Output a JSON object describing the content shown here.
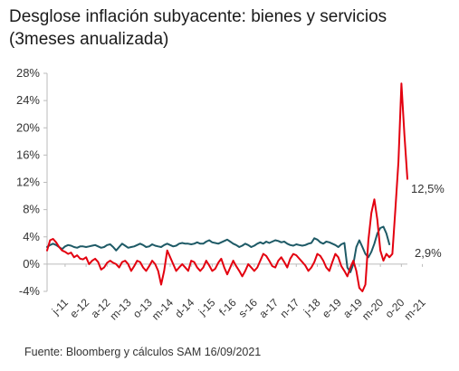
{
  "title_line1": "Desglose inflación subyacente: bienes y servicios",
  "title_line2": "(3meses anualizada)",
  "source": "Fuente: Bloomberg y cálculos SAM 16/09/2021",
  "colors": {
    "bienes": "#e3000f",
    "servicios": "#1e5a66",
    "axis": "#bbbbbb"
  },
  "chart_data": {
    "type": "line",
    "title": "Desglose inflación subyacente: bienes y servicios (3meses anualizada)",
    "xlabel": "",
    "ylabel": "",
    "ylim": [
      -4,
      28
    ],
    "yticks": [
      -4,
      0,
      4,
      8,
      12,
      16,
      20,
      24,
      28
    ],
    "ytick_labels": [
      "-4%",
      "0%",
      "4%",
      "8%",
      "12%",
      "16%",
      "20%",
      "24%",
      "28%"
    ],
    "xtick_labels": [
      "j-11",
      "e-12",
      "a-12",
      "m-13",
      "o-13",
      "m-14",
      "d-14",
      "j-15",
      "f-16",
      "s-16",
      "a-17",
      "n-17",
      "j-18",
      "e-19",
      "a-19",
      "m-20",
      "o-20",
      "m-21"
    ],
    "xtick_months": [
      6,
      13,
      20,
      27,
      34,
      41,
      48,
      55,
      62,
      69,
      76,
      83,
      90,
      97,
      104,
      111,
      118,
      125
    ],
    "x_start": "2011-06",
    "x_end": "2021-08",
    "grid": false,
    "legend": "none",
    "series": [
      {
        "end_label": "12,5%",
        "color": "#e3000f",
        "values": [
          2.0,
          3.5,
          3.7,
          3.2,
          2.5,
          2.0,
          1.8,
          1.5,
          1.7,
          1.0,
          1.3,
          0.8,
          0.7,
          1.0,
          0.0,
          0.5,
          0.8,
          0.3,
          -0.8,
          -0.5,
          0.2,
          0.5,
          0.2,
          0.0,
          -0.5,
          0.3,
          0.5,
          0.0,
          -1.0,
          -0.3,
          0.5,
          0.3,
          -0.5,
          -1.0,
          -0.3,
          0.5,
          0.0,
          -1.0,
          -3.0,
          -1.0,
          2.0,
          1.0,
          0.0,
          -1.0,
          -0.5,
          0.0,
          -0.5,
          -1.0,
          0.5,
          0.3,
          -0.5,
          -1.0,
          -0.5,
          0.5,
          -0.2,
          -1.0,
          -0.7,
          0.2,
          0.8,
          -0.5,
          -1.5,
          -0.5,
          0.5,
          -0.3,
          -1.0,
          -1.8,
          -1.0,
          0.0,
          -0.5,
          -1.0,
          -0.5,
          0.5,
          1.5,
          1.2,
          0.5,
          -0.3,
          -0.5,
          0.5,
          1.0,
          0.3,
          -0.5,
          0.8,
          1.5,
          1.3,
          0.8,
          0.3,
          -0.2,
          -1.0,
          -0.5,
          0.3,
          1.5,
          1.2,
          0.5,
          -0.5,
          -1.0,
          0.3,
          1.5,
          1.0,
          -0.3,
          -1.0,
          -1.8,
          -0.5,
          0.5,
          -1.0,
          -3.5,
          -4.0,
          -3.0,
          3.5,
          7.5,
          9.5,
          6.5,
          2.0,
          0.5,
          1.5,
          1.0,
          1.5,
          8.0,
          15.0,
          26.5,
          19.0,
          12.5
        ]
      },
      {
        "end_label": "2,9%",
        "color": "#1e5a66",
        "values": [
          2.5,
          2.8,
          3.0,
          2.8,
          2.5,
          2.2,
          2.6,
          2.8,
          2.7,
          2.5,
          2.4,
          2.6,
          2.6,
          2.5,
          2.6,
          2.7,
          2.8,
          2.6,
          2.4,
          2.5,
          2.8,
          2.9,
          2.5,
          2.0,
          2.5,
          3.0,
          2.7,
          2.4,
          2.5,
          2.6,
          2.8,
          3.0,
          2.8,
          2.5,
          2.6,
          2.9,
          2.7,
          2.6,
          2.5,
          2.8,
          3.0,
          2.8,
          2.6,
          2.7,
          3.0,
          3.1,
          3.0,
          3.0,
          2.9,
          3.0,
          3.2,
          3.0,
          3.0,
          3.3,
          3.5,
          3.2,
          3.1,
          3.0,
          3.2,
          3.4,
          3.6,
          3.3,
          3.0,
          2.8,
          2.5,
          2.7,
          3.0,
          2.8,
          2.5,
          2.7,
          3.0,
          3.2,
          3.0,
          3.3,
          3.1,
          3.3,
          3.5,
          3.4,
          3.2,
          3.3,
          3.0,
          2.8,
          2.7,
          2.9,
          2.8,
          2.7,
          2.8,
          3.0,
          3.1,
          3.8,
          3.6,
          3.2,
          3.0,
          3.3,
          3.2,
          3.0,
          2.8,
          2.5,
          2.9,
          3.1,
          -0.5,
          -1.2,
          0.0,
          2.5,
          3.5,
          2.5,
          1.5,
          1.0,
          1.8,
          3.0,
          4.5,
          5.3,
          5.5,
          4.5,
          2.9
        ]
      }
    ]
  }
}
